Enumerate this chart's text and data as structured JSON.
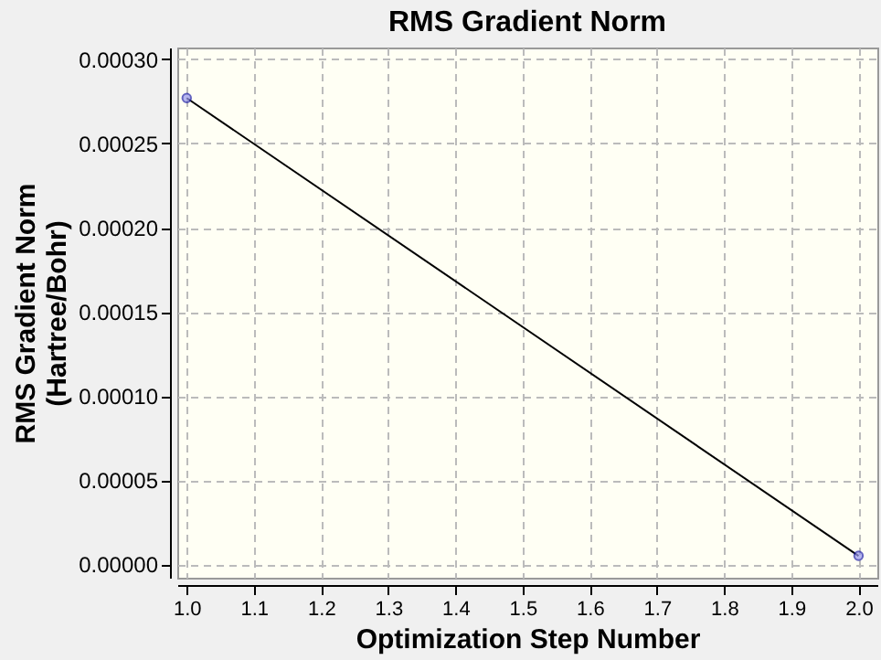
{
  "chart_data": {
    "type": "line",
    "title": "RMS Gradient Norm",
    "xlabel": "Optimization Step Number",
    "ylabel": "RMS Gradient Norm\n(Hartree/Bohr)",
    "x": [
      1.0,
      2.0
    ],
    "series": [
      {
        "color": "#000000",
        "values": [
          0.000277,
          5e-06
        ]
      }
    ],
    "xlim": [
      0.986,
      2.028
    ],
    "xticks": [
      {
        "value": 1.0,
        "label": "1.0"
      },
      {
        "value": 1.1,
        "label": "1.1"
      },
      {
        "value": 1.2,
        "label": "1.2"
      },
      {
        "value": 1.3,
        "label": "1.3"
      },
      {
        "value": 1.4,
        "label": "1.4"
      },
      {
        "value": 1.5,
        "label": "1.5"
      },
      {
        "value": 1.6,
        "label": "1.6"
      },
      {
        "value": 1.7,
        "label": "1.7"
      },
      {
        "value": 1.8,
        "label": "1.8"
      },
      {
        "value": 1.9,
        "label": "1.9"
      },
      {
        "value": 2.0,
        "label": "2.0"
      }
    ],
    "ylim": [
      -8e-06,
      0.000307
    ],
    "yticks": [
      {
        "value": 0,
        "label": "0.00000"
      },
      {
        "value": 5e-05,
        "label": "0.00005"
      },
      {
        "value": 0.0001,
        "label": "0.00010"
      },
      {
        "value": 0.00015,
        "label": "0.00015"
      },
      {
        "value": 0.0002,
        "label": "0.00020"
      },
      {
        "value": 0.00025,
        "label": "0.00025"
      },
      {
        "value": 0.0003,
        "label": "0.00030"
      }
    ],
    "grid": true,
    "marker": "circle",
    "line_style": "solid"
  }
}
